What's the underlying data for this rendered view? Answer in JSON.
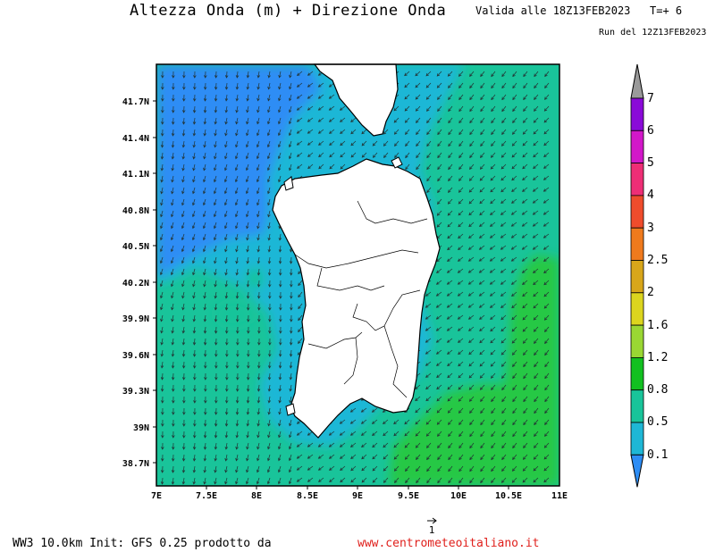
{
  "header": {
    "title": "Altezza Onda (m) + Direzione Onda",
    "valid": "Valida alle 18Z13FEB2023",
    "timestep": "T=+ 6",
    "run": "Run del 12Z13FEB2023"
  },
  "map": {
    "region": "Sardegna",
    "lat_labels": [
      "41.7N",
      "41.4N",
      "41.1N",
      "40.8N",
      "40.5N",
      "40.2N",
      "39.9N",
      "39.6N",
      "39.3N",
      "39N",
      "38.7N"
    ],
    "lon_labels": [
      "7E",
      "7.5E",
      "8E",
      "8.5E",
      "9E",
      "9.5E",
      "10E",
      "10.5E",
      "11E"
    ],
    "arrow_direction": "from north-east (arrows pointing south-west)",
    "colors": {
      "range_0.1_0.5": "#1eb7d6",
      "range_0.5_0.8": "#19c49a",
      "range_0.8_1.2": "#27c845",
      "below_0.1": "#2d8df5",
      "land": "#ffffff"
    }
  },
  "legend": {
    "labels": [
      "7",
      "6",
      "5",
      "4",
      "3",
      "2.5",
      "2",
      "1.6",
      "1.2",
      "0.8",
      "0.5",
      "0.1"
    ],
    "colors": [
      "#9a9a9a",
      "#8a0ad8",
      "#d218c9",
      "#ee2e76",
      "#ef4c2c",
      "#ef7a1d",
      "#d8a61a",
      "#dcd51e",
      "#9ad733",
      "#12c020",
      "#19c49a",
      "#1eb7d6",
      "#2d8df5"
    ]
  },
  "vector_reference": {
    "label": "1"
  },
  "footer": {
    "left": "WW3 10.0km Init: GFS 0.25 prodotto da",
    "right": "www.centrometeoitaliano.it"
  }
}
